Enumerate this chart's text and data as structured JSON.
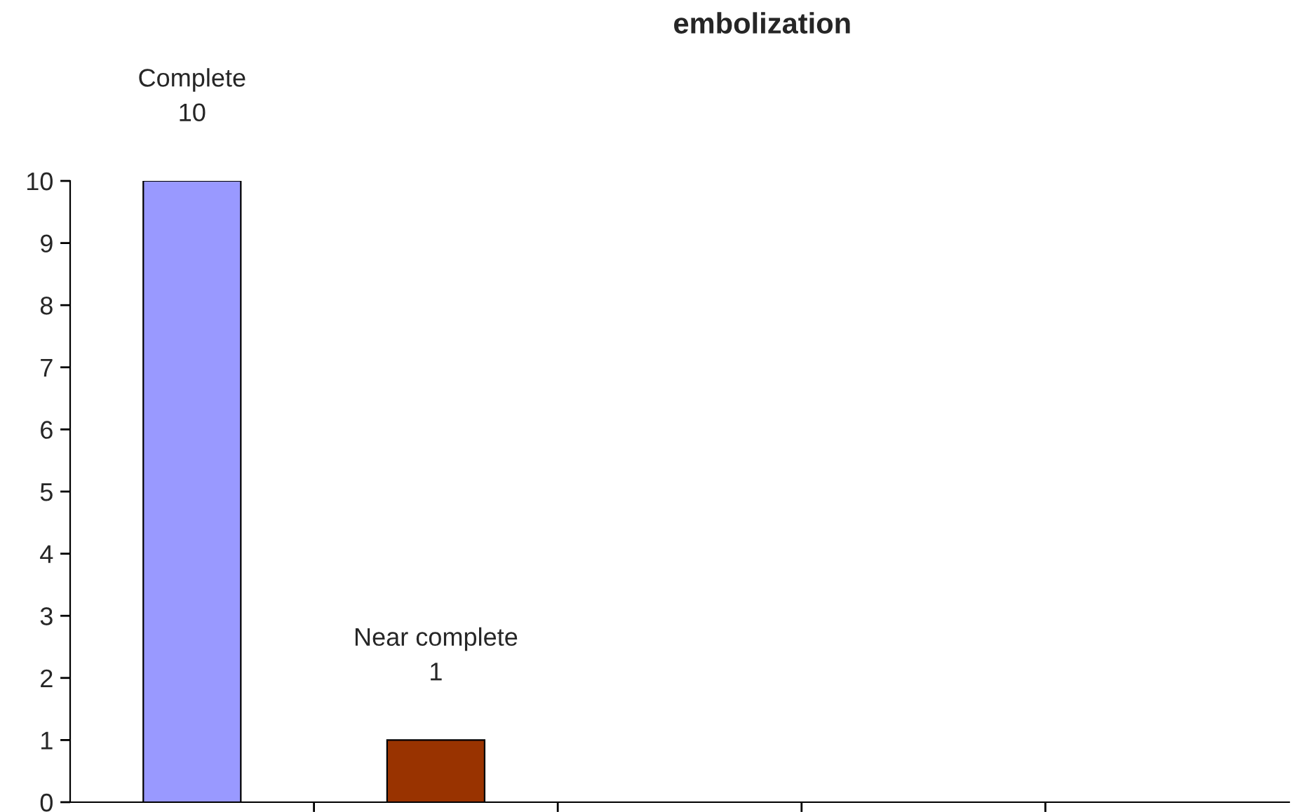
{
  "chart_data": {
    "type": "bar",
    "title": "embolization",
    "categories": [
      null,
      null,
      null,
      null,
      null
    ],
    "value_labels": [
      "Complete\n10",
      "Near complete\n1",
      null,
      null,
      null
    ],
    "values": [
      10,
      1,
      null,
      null,
      null
    ],
    "colors": [
      "#9999ff",
      "#993300",
      "#9999ff",
      "#9999ff",
      "#9999ff"
    ],
    "ylim": [
      0,
      10
    ],
    "yticks": [
      0,
      1,
      2,
      3,
      4,
      5,
      6,
      7,
      8,
      9,
      10
    ],
    "grid": false,
    "legend": false
  }
}
